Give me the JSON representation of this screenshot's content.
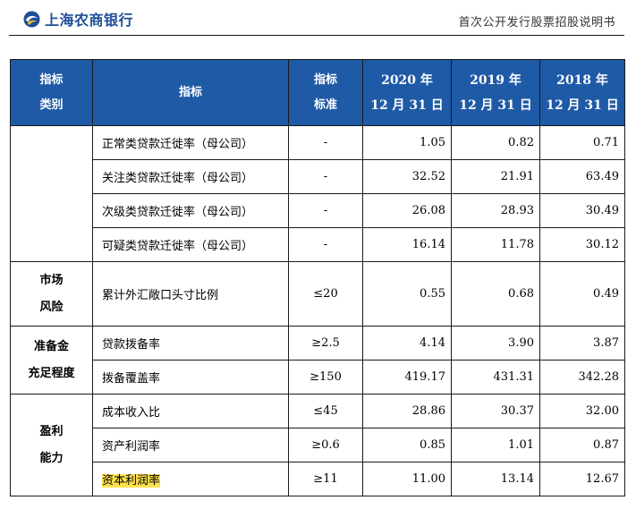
{
  "header": {
    "bank_name": "上海农商银行",
    "doc_title": "首次公开发行股票招股说明书",
    "brand_color": "#1f4f96",
    "logo_icon": "bank-logo-icon"
  },
  "table": {
    "header_bg": "#1f5aa6",
    "columns": {
      "category": [
        "指标",
        "类别"
      ],
      "indicator": "指标",
      "standard": [
        "指标",
        "标准"
      ],
      "y2020": [
        "2020 年",
        "12 月 31 日"
      ],
      "y2019": [
        "2019 年",
        "12 月 31 日"
      ],
      "y2018": [
        "2018 年",
        "12 月 31 日"
      ]
    },
    "groups": [
      {
        "category": [],
        "rows": [
          {
            "indicator": "正常类贷款迁徙率（母公司）",
            "standard": "-",
            "v2020": "1.05",
            "v2019": "0.82",
            "v2018": "0.71"
          },
          {
            "indicator": "关注类贷款迁徙率（母公司）",
            "standard": "-",
            "v2020": "32.52",
            "v2019": "21.91",
            "v2018": "63.49"
          },
          {
            "indicator": "次级类贷款迁徙率（母公司）",
            "standard": "-",
            "v2020": "26.08",
            "v2019": "28.93",
            "v2018": "30.49"
          },
          {
            "indicator": "可疑类贷款迁徙率（母公司）",
            "standard": "-",
            "v2020": "16.14",
            "v2019": "11.78",
            "v2018": "30.12"
          }
        ]
      },
      {
        "category": [
          "市场",
          "风险"
        ],
        "rows": [
          {
            "indicator": "累计外汇敞口头寸比例",
            "standard": "≤20",
            "v2020": "0.55",
            "v2019": "0.68",
            "v2018": "0.49"
          }
        ]
      },
      {
        "category": [
          "准备金",
          "充足程度"
        ],
        "rows": [
          {
            "indicator": "贷款拨备率",
            "standard": "≥2.5",
            "v2020": "4.14",
            "v2019": "3.90",
            "v2018": "3.87"
          },
          {
            "indicator": "拨备覆盖率",
            "standard": "≥150",
            "v2020": "419.17",
            "v2019": "431.31",
            "v2018": "342.28"
          }
        ]
      },
      {
        "category": [
          "盈利",
          "能力"
        ],
        "rows": [
          {
            "indicator": "成本收入比",
            "standard": "≤45",
            "v2020": "28.86",
            "v2019": "30.37",
            "v2018": "32.00"
          },
          {
            "indicator": "资产利润率",
            "standard": "≥0.6",
            "v2020": "0.85",
            "v2019": "1.01",
            "v2018": "0.87"
          },
          {
            "indicator": "资本利润率",
            "standard": "≥11",
            "v2020": "11.00",
            "v2019": "13.14",
            "v2018": "12.67",
            "highlight": "#ffe14d"
          }
        ]
      }
    ]
  }
}
